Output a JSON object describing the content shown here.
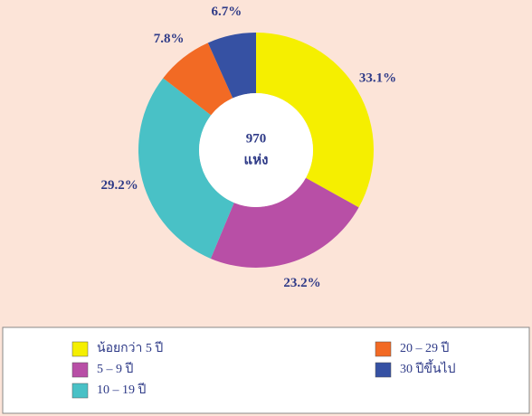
{
  "chart_data": {
    "type": "donut",
    "categories": [
      "น้อยกว่า 5 ปี",
      "5 – 9 ปี",
      "10 – 19 ปี",
      "20 – 29 ปี",
      "30 ปีขึ้นไป"
    ],
    "values": [
      33.1,
      23.2,
      29.2,
      7.8,
      6.7
    ],
    "value_labels": [
      "33.1%",
      "23.2%",
      "29.2%",
      "7.8%",
      "6.7%"
    ],
    "colors": [
      "#f5ef00",
      "#b84fa6",
      "#49c1c6",
      "#f26a24",
      "#3651a3"
    ],
    "total": 970,
    "total_unit": "แห่ง",
    "legend": "bottom"
  }
}
